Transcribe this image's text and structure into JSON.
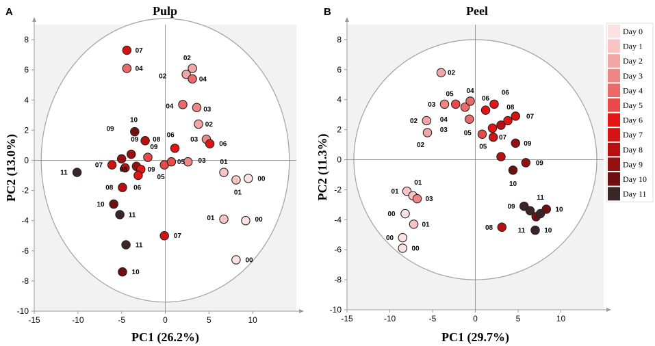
{
  "colors": {
    "day_00": "#fbe2e2",
    "day_01": "#f8c4c4",
    "day_02": "#f4a6a6",
    "day_03": "#ef8686",
    "day_04": "#ea6969",
    "day_05": "#e84a4a",
    "day_06": "#e31414",
    "day_07": "#d41313",
    "day_08": "#b81010",
    "day_09": "#951111",
    "day_10": "#6e1010",
    "day_11": "#3b2626",
    "plot_bg": "#f2f2f2",
    "ellipse": "#a6a6a6",
    "axis": "#9a9a9a"
  },
  "legend": {
    "entries": [
      {
        "label": "Day 0",
        "color_key": "day_00"
      },
      {
        "label": "Day 1",
        "color_key": "day_01"
      },
      {
        "label": "Day 2",
        "color_key": "day_02"
      },
      {
        "label": "Day 3",
        "color_key": "day_03"
      },
      {
        "label": "Day 4",
        "color_key": "day_04"
      },
      {
        "label": "Day 5",
        "color_key": "day_05"
      },
      {
        "label": "Day 6",
        "color_key": "day_06"
      },
      {
        "label": "Day 7",
        "color_key": "day_07"
      },
      {
        "label": "Day 8",
        "color_key": "day_08"
      },
      {
        "label": "Day 9",
        "color_key": "day_09"
      },
      {
        "label": "Day 10",
        "color_key": "day_10"
      },
      {
        "label": "Day 11",
        "color_key": "day_11"
      }
    ]
  },
  "chart_data": [
    {
      "type": "scatter",
      "panel_letter": "A",
      "title": "Pulp",
      "xlabel": "PC1 (26.2%)",
      "ylabel": "PC2 (13.0%)",
      "xlim": [
        -15,
        15
      ],
      "ylim": [
        -10,
        9
      ],
      "xticks": [
        -15,
        -10,
        -5,
        0,
        5,
        10
      ],
      "yticks": [
        -10,
        -8,
        -6,
        -4,
        -2,
        0,
        2,
        4,
        6,
        8
      ],
      "ellipse": {
        "cx": 0,
        "cy": 0,
        "rx": 14.2,
        "ry": 9.4
      },
      "points": [
        {
          "x": -4.4,
          "y": 7.3,
          "day": "07"
        },
        {
          "x": -4.4,
          "y": 6.1,
          "day": "04"
        },
        {
          "x": 2.4,
          "y": 5.7,
          "day": "02"
        },
        {
          "x": 3.1,
          "y": 6.1,
          "day": "02"
        },
        {
          "x": 3.1,
          "y": 5.4,
          "day": "04"
        },
        {
          "x": 2.0,
          "y": 3.7,
          "day": "04"
        },
        {
          "x": 3.6,
          "y": 3.5,
          "day": "03"
        },
        {
          "x": 3.8,
          "y": 2.4,
          "day": "02"
        },
        {
          "x": 4.7,
          "y": 1.4,
          "day": "03"
        },
        {
          "x": 5.1,
          "y": 1.1,
          "day": "06"
        },
        {
          "x": 1.1,
          "y": 0.8,
          "day": "06"
        },
        {
          "x": -3.5,
          "y": 1.9,
          "day": "10"
        },
        {
          "x": -2.3,
          "y": 1.3,
          "day": "08"
        },
        {
          "x": -3.9,
          "y": 0.4,
          "day": "09"
        },
        {
          "x": -5.0,
          "y": 0.1,
          "day": "09"
        },
        {
          "x": -6.1,
          "y": -0.3,
          "day": "07"
        },
        {
          "x": -4.6,
          "y": -0.5,
          "day": "08"
        },
        {
          "x": -3.3,
          "y": -0.4,
          "day": "09"
        },
        {
          "x": -2.0,
          "y": 0.2,
          "day": "05"
        },
        {
          "x": -2.8,
          "y": -0.6,
          "day": "06"
        },
        {
          "x": -3.1,
          "y": -1.0,
          "day": "06"
        },
        {
          "x": -0.1,
          "y": -0.3,
          "day": "05"
        },
        {
          "x": 0.7,
          "y": -0.1,
          "day": "05"
        },
        {
          "x": 2.6,
          "y": -0.1,
          "day": "03"
        },
        {
          "x": -10.1,
          "y": -0.8,
          "day": "11"
        },
        {
          "x": -4.9,
          "y": -1.8,
          "day": "08"
        },
        {
          "x": -5.9,
          "y": -2.9,
          "day": "10"
        },
        {
          "x": -5.2,
          "y": -3.6,
          "day": "11"
        },
        {
          "x": 6.7,
          "y": -0.8,
          "day": "01"
        },
        {
          "x": 8.1,
          "y": -1.3,
          "day": "01"
        },
        {
          "x": 9.5,
          "y": -1.2,
          "day": "00"
        },
        {
          "x": 6.7,
          "y": -3.9,
          "day": "01"
        },
        {
          "x": 9.2,
          "y": -4.0,
          "day": "00"
        },
        {
          "x": 8.1,
          "y": -6.6,
          "day": "00"
        },
        {
          "x": -0.1,
          "y": -5.0,
          "day": "07"
        },
        {
          "x": -4.5,
          "y": -5.6,
          "day": "11"
        },
        {
          "x": -4.9,
          "y": -7.4,
          "day": "10"
        }
      ],
      "point_labels": [
        {
          "text": "07",
          "x": -3.0,
          "y": 7.3
        },
        {
          "text": "04",
          "x": -3.0,
          "y": 6.1
        },
        {
          "text": "02",
          "x": 2.5,
          "y": 6.8
        },
        {
          "text": "02",
          "x": -0.3,
          "y": 5.6
        },
        {
          "text": "04",
          "x": 4.3,
          "y": 5.4
        },
        {
          "text": "04",
          "x": 0.5,
          "y": 3.6
        },
        {
          "text": "03",
          "x": 4.8,
          "y": 3.4
        },
        {
          "text": "02",
          "x": 5.0,
          "y": 2.4
        },
        {
          "text": "03",
          "x": 3.3,
          "y": 1.4
        },
        {
          "text": "06",
          "x": 6.6,
          "y": 1.1
        },
        {
          "text": "06",
          "x": 0.6,
          "y": 1.7
        },
        {
          "text": "10",
          "x": -3.6,
          "y": 2.7
        },
        {
          "text": "09",
          "x": -6.3,
          "y": 2.1
        },
        {
          "text": "09",
          "x": -3.5,
          "y": 1.4
        },
        {
          "text": "08",
          "x": -1.0,
          "y": 1.4
        },
        {
          "text": "09",
          "x": -1.6,
          "y": -0.6
        },
        {
          "text": "09",
          "x": -1.3,
          "y": 0.9
        },
        {
          "text": "07",
          "x": -7.6,
          "y": -0.3
        },
        {
          "text": "08",
          "x": -4.8,
          "y": -0.6
        },
        {
          "text": "05",
          "x": -0.5,
          "y": -1.1
        },
        {
          "text": "05",
          "x": 1.8,
          "y": -0.1
        },
        {
          "text": "03",
          "x": 4.2,
          "y": 0.0
        },
        {
          "text": "01",
          "x": 6.7,
          "y": -0.1
        },
        {
          "text": "01",
          "x": 8.3,
          "y": -2.1
        },
        {
          "text": "00",
          "x": 11.0,
          "y": -1.2
        },
        {
          "text": "01",
          "x": 5.2,
          "y": -3.8
        },
        {
          "text": "00",
          "x": 10.7,
          "y": -3.9
        },
        {
          "text": "00",
          "x": 9.6,
          "y": -6.6
        },
        {
          "text": "11",
          "x": -11.6,
          "y": -0.8
        },
        {
          "text": "08",
          "x": -6.4,
          "y": -1.8
        },
        {
          "text": "06",
          "x": -3.2,
          "y": -1.8
        },
        {
          "text": "10",
          "x": -7.4,
          "y": -2.9
        },
        {
          "text": "11",
          "x": -3.8,
          "y": -3.6
        },
        {
          "text": "07",
          "x": 1.4,
          "y": -5.0
        },
        {
          "text": "11",
          "x": -3.0,
          "y": -5.6
        },
        {
          "text": "10",
          "x": -3.4,
          "y": -7.4
        }
      ]
    },
    {
      "type": "scatter",
      "panel_letter": "B",
      "title": "Peel",
      "xlabel": "PC1 (29.7%)",
      "ylabel": "PC2 (11.3%)",
      "xlim": [
        -15,
        15
      ],
      "ylim": [
        -10,
        9
      ],
      "xticks": [
        -15,
        -10,
        -5,
        0,
        5,
        10
      ],
      "yticks": [
        -10,
        -8,
        -6,
        -4,
        -2,
        0,
        2,
        4,
        6,
        8
      ],
      "ellipse": {
        "cx": 0,
        "cy": 0,
        "rx": 14.2,
        "ry": 8.0
      },
      "points": [
        {
          "x": -4.0,
          "y": 5.8,
          "day": "02"
        },
        {
          "x": -3.6,
          "y": 3.7,
          "day": "03"
        },
        {
          "x": -2.3,
          "y": 3.7,
          "day": "05"
        },
        {
          "x": -1.2,
          "y": 3.5,
          "day": "04"
        },
        {
          "x": -0.6,
          "y": 3.9,
          "day": "04"
        },
        {
          "x": -0.7,
          "y": 2.7,
          "day": "04"
        },
        {
          "x": -5.7,
          "y": 2.6,
          "day": "02"
        },
        {
          "x": -5.6,
          "y": 1.8,
          "day": "02"
        },
        {
          "x": 1.2,
          "y": 3.3,
          "day": "06"
        },
        {
          "x": 2.2,
          "y": 3.7,
          "day": "06"
        },
        {
          "x": 3.0,
          "y": 2.3,
          "day": "08"
        },
        {
          "x": 3.8,
          "y": 2.6,
          "day": "06"
        },
        {
          "x": 4.7,
          "y": 2.9,
          "day": "07"
        },
        {
          "x": 2.0,
          "y": 2.1,
          "day": "06"
        },
        {
          "x": 0.8,
          "y": 1.7,
          "day": "05"
        },
        {
          "x": 2.1,
          "y": 1.5,
          "day": "07"
        },
        {
          "x": 4.7,
          "y": 1.1,
          "day": "09"
        },
        {
          "x": 3.0,
          "y": 0.2,
          "day": "08"
        },
        {
          "x": 4.4,
          "y": -0.7,
          "day": "10"
        },
        {
          "x": 5.9,
          "y": -0.2,
          "day": "09"
        },
        {
          "x": -8.0,
          "y": -2.1,
          "day": "01"
        },
        {
          "x": -7.3,
          "y": -2.4,
          "day": "01"
        },
        {
          "x": -6.8,
          "y": -2.6,
          "day": "03"
        },
        {
          "x": -8.2,
          "y": -3.6,
          "day": "00"
        },
        {
          "x": -7.2,
          "y": -4.3,
          "day": "01"
        },
        {
          "x": -8.5,
          "y": -5.2,
          "day": "00"
        },
        {
          "x": -8.5,
          "y": -5.9,
          "day": "00"
        },
        {
          "x": 5.7,
          "y": -3.1,
          "day": "11"
        },
        {
          "x": 6.4,
          "y": -3.4,
          "day": "11"
        },
        {
          "x": 7.1,
          "y": -3.8,
          "day": "10"
        },
        {
          "x": 8.3,
          "y": -3.3,
          "day": "10"
        },
        {
          "x": 7.6,
          "y": -3.6,
          "day": "11"
        },
        {
          "x": 3.1,
          "y": -4.5,
          "day": "08"
        },
        {
          "x": 7.0,
          "y": -4.7,
          "day": "11"
        }
      ],
      "point_labels": [
        {
          "text": "02",
          "x": -2.8,
          "y": 5.8
        },
        {
          "text": "03",
          "x": -5.1,
          "y": 3.7
        },
        {
          "text": "05",
          "x": -3.0,
          "y": 4.4
        },
        {
          "text": "04",
          "x": -0.6,
          "y": 4.6
        },
        {
          "text": "04",
          "x": -3.7,
          "y": 2.7
        },
        {
          "text": "03",
          "x": -3.7,
          "y": 2.0
        },
        {
          "text": "02",
          "x": -7.2,
          "y": 2.6
        },
        {
          "text": "02",
          "x": -6.4,
          "y": 1.0
        },
        {
          "text": "06",
          "x": 1.2,
          "y": 4.1
        },
        {
          "text": "06",
          "x": 3.5,
          "y": 4.5
        },
        {
          "text": "08",
          "x": 4.1,
          "y": 3.5
        },
        {
          "text": "07",
          "x": 6.4,
          "y": 2.9
        },
        {
          "text": "05",
          "x": -0.9,
          "y": 1.8
        },
        {
          "text": "05",
          "x": 0.9,
          "y": 0.9
        },
        {
          "text": "07",
          "x": 3.2,
          "y": 1.5
        },
        {
          "text": "09",
          "x": 6.1,
          "y": 1.1
        },
        {
          "text": "09",
          "x": 7.5,
          "y": -0.2
        },
        {
          "text": "10",
          "x": 4.4,
          "y": -1.6
        },
        {
          "text": "01",
          "x": -6.7,
          "y": -1.5
        },
        {
          "text": "01",
          "x": -9.4,
          "y": -2.1
        },
        {
          "text": "03",
          "x": -5.4,
          "y": -2.6
        },
        {
          "text": "00",
          "x": -9.8,
          "y": -3.6
        },
        {
          "text": "01",
          "x": -5.8,
          "y": -4.3
        },
        {
          "text": "00",
          "x": -10.0,
          "y": -5.2
        },
        {
          "text": "00",
          "x": -7.0,
          "y": -5.9
        },
        {
          "text": "11",
          "x": 7.6,
          "y": -2.5
        },
        {
          "text": "09",
          "x": 4.2,
          "y": -3.1
        },
        {
          "text": "10",
          "x": 9.8,
          "y": -3.3
        },
        {
          "text": "10",
          "x": 8.5,
          "y": -4.7
        },
        {
          "text": "08",
          "x": 1.6,
          "y": -4.5
        },
        {
          "text": "11",
          "x": 5.4,
          "y": -4.7
        }
      ]
    }
  ]
}
